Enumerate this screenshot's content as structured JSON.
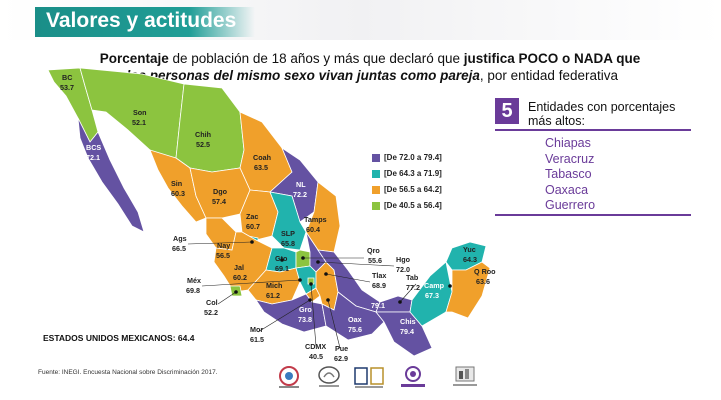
{
  "header": {
    "title": "Valores y actitudes"
  },
  "subtitle": {
    "part1": "Porcentaje",
    "part2": " de población de 18 años y más que declaró que ",
    "part3": "justifica POCO o NADA que ",
    "part4": "dos personas del mismo sexo vivan juntas como pareja",
    "part5": ", por entidad federativa"
  },
  "colors": {
    "dark": "#6452a2",
    "teal": "#21b3ad",
    "orange": "#f0a02b",
    "green": "#8cc43f",
    "purple": "#6a3b99",
    "header": "#1f9d96"
  },
  "legend": [
    {
      "label": "[De 72.0 a 79.4]",
      "color": "#6452a2"
    },
    {
      "label": "[De 64.3 a 71.9]",
      "color": "#21b3ad"
    },
    {
      "label": "[De 56.5 a 64.2]",
      "color": "#f0a02b"
    },
    {
      "label": "[De 40.5 a 56.4]",
      "color": "#8cc43f"
    }
  ],
  "states": [
    {
      "abbr": "BC",
      "value": "53.7"
    },
    {
      "abbr": "Son",
      "value": "52.1"
    },
    {
      "abbr": "Chih",
      "value": "52.5"
    },
    {
      "abbr": "BCS",
      "value": "72.1"
    },
    {
      "abbr": "Coah",
      "value": "63.5"
    },
    {
      "abbr": "NL",
      "value": "72.2"
    },
    {
      "abbr": "Sin",
      "value": "60.3"
    },
    {
      "abbr": "Dgo",
      "value": "57.4"
    },
    {
      "abbr": "Tamps",
      "value": "60.4"
    },
    {
      "abbr": "Zac",
      "value": "60.7"
    },
    {
      "abbr": "SLP",
      "value": "65.8"
    },
    {
      "abbr": "Ags",
      "value": "66.5"
    },
    {
      "abbr": "Nay",
      "value": "56.5"
    },
    {
      "abbr": "Gto",
      "value": "69.1"
    },
    {
      "abbr": "Qro",
      "value": "55.6"
    },
    {
      "abbr": "Hgo",
      "value": "72.0"
    },
    {
      "abbr": "Jal",
      "value": "60.2"
    },
    {
      "abbr": "Tlax",
      "value": "68.9"
    },
    {
      "abbr": "Méx",
      "value": "69.8"
    },
    {
      "abbr": "Mich",
      "value": "61.2"
    },
    {
      "abbr": "Col",
      "value": "52.2"
    },
    {
      "abbr": "Gro",
      "value": "73.8"
    },
    {
      "abbr": "Mor",
      "value": "61.5"
    },
    {
      "abbr": "CDMX",
      "value": "40.5"
    },
    {
      "abbr": "Pue",
      "value": "62.9"
    },
    {
      "abbr": "Ver",
      "value": "79.1"
    },
    {
      "abbr": "Oax",
      "value": "75.6"
    },
    {
      "abbr": "Tab",
      "value": "77.2"
    },
    {
      "abbr": "Chis",
      "value": "79.4"
    },
    {
      "abbr": "Camp",
      "value": "67.3"
    },
    {
      "abbr": "Yuc",
      "value": "64.3"
    },
    {
      "abbr": "Q Roo",
      "value": "63.6"
    }
  ],
  "top5": {
    "number": "5",
    "title": "Entidades con porcentajes más altos:",
    "items": [
      "Chiapas",
      "Veracruz",
      "Tabasco",
      "Oaxaca",
      "Guerrero"
    ]
  },
  "national": "ESTADOS UNIDOS MEXICANOS: 64.4",
  "source": "Fuente: INEGI. Encuesta Nacional sobre Discriminación 2017."
}
